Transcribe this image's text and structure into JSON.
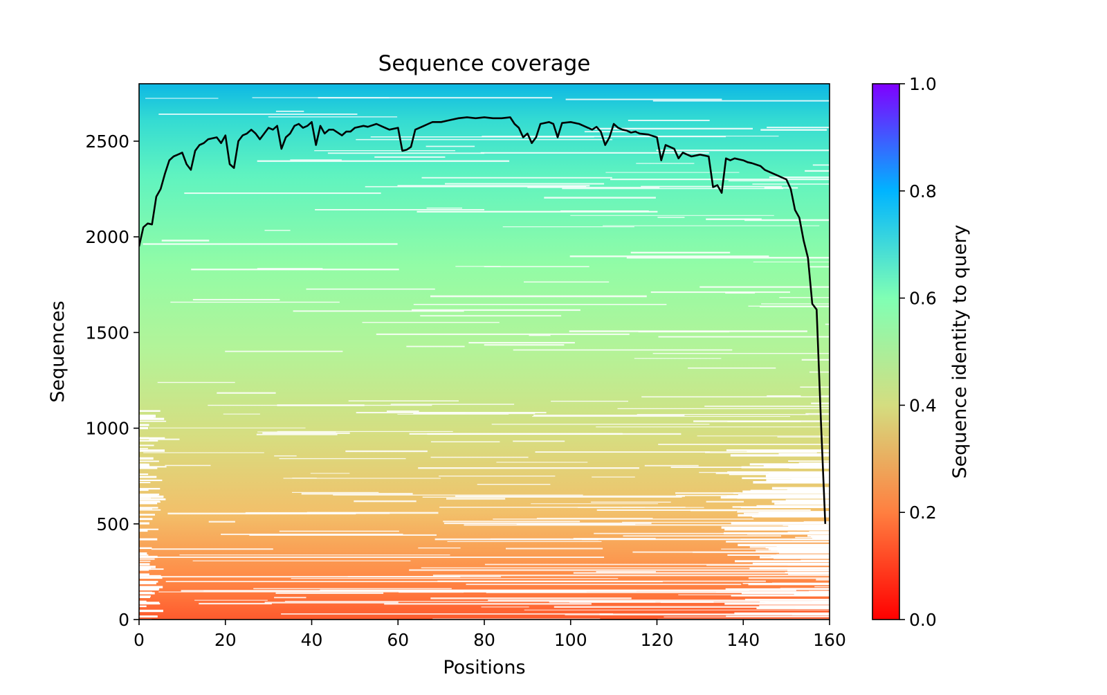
{
  "chart_data": {
    "type": "heatmap",
    "title": "Sequence coverage",
    "xlabel": "Positions",
    "ylabel": "Sequences",
    "xlim": [
      0,
      160
    ],
    "ylim": [
      0,
      2800
    ],
    "xticks": [
      0,
      20,
      40,
      60,
      80,
      100,
      120,
      140,
      160
    ],
    "yticks": [
      0,
      500,
      1000,
      1500,
      2000,
      2500
    ],
    "colorbar": {
      "label": "Sequence identity to query",
      "range": [
        0.0,
        1.0
      ],
      "ticks": [
        "0.0",
        "0.2",
        "0.4",
        "0.6",
        "0.8",
        "1.0"
      ],
      "colormap": "rainbow_r",
      "stops": [
        "#ff0000",
        "#ff7f40",
        "#d4dd80",
        "#80ffb4",
        "#00b4ff",
        "#8000ff"
      ]
    },
    "heatmap_identity_by_row": [
      {
        "sequence": 0,
        "identity": 0.12
      },
      {
        "sequence": 250,
        "identity": 0.2
      },
      {
        "sequence": 500,
        "identity": 0.28
      },
      {
        "sequence": 1000,
        "identity": 0.37
      },
      {
        "sequence": 1500,
        "identity": 0.44
      },
      {
        "sequence": 2000,
        "identity": 0.5
      },
      {
        "sequence": 2500,
        "identity": 0.58
      },
      {
        "sequence": 2800,
        "identity": 0.72
      }
    ],
    "series": [
      {
        "type": "line",
        "color": "#000000",
        "x": [
          0,
          1,
          2,
          3,
          4,
          5,
          6,
          7,
          8,
          9,
          10,
          11,
          12,
          13,
          14,
          15,
          16,
          18,
          19,
          20,
          21,
          22,
          23,
          24,
          25,
          26,
          27,
          28,
          29,
          30,
          31,
          32,
          33,
          34,
          35,
          36,
          37,
          38,
          39,
          40,
          41,
          42,
          43,
          44,
          45,
          47,
          48,
          49,
          50,
          52,
          53,
          55,
          56,
          58,
          60,
          61,
          62,
          63,
          64,
          66,
          67,
          68,
          70,
          72,
          74,
          76,
          78,
          80,
          82,
          84,
          86,
          87,
          88,
          89,
          90,
          91,
          92,
          93,
          95,
          96,
          97,
          98,
          100,
          102,
          103,
          105,
          106,
          107,
          108,
          109,
          110,
          111,
          112,
          113,
          114,
          115,
          116,
          118,
          120,
          121,
          122,
          123,
          124,
          125,
          126,
          127,
          128,
          129,
          130,
          132,
          133,
          134,
          135,
          136,
          137,
          138,
          140,
          141,
          142,
          144,
          145,
          146,
          147,
          148,
          149,
          150,
          151,
          152,
          153,
          154,
          155,
          156,
          157,
          158,
          159
        ],
        "y": [
          1950,
          2050,
          2070,
          2065,
          2210,
          2250,
          2330,
          2400,
          2420,
          2430,
          2440,
          2380,
          2350,
          2450,
          2480,
          2490,
          2510,
          2520,
          2490,
          2530,
          2380,
          2360,
          2500,
          2530,
          2540,
          2560,
          2540,
          2510,
          2540,
          2570,
          2560,
          2580,
          2460,
          2520,
          2540,
          2580,
          2590,
          2570,
          2580,
          2600,
          2480,
          2580,
          2540,
          2560,
          2560,
          2530,
          2550,
          2550,
          2570,
          2580,
          2575,
          2590,
          2580,
          2560,
          2570,
          2450,
          2455,
          2470,
          2560,
          2580,
          2590,
          2600,
          2600,
          2610,
          2620,
          2625,
          2620,
          2625,
          2620,
          2620,
          2625,
          2590,
          2570,
          2520,
          2540,
          2490,
          2520,
          2590,
          2600,
          2590,
          2520,
          2595,
          2600,
          2590,
          2580,
          2560,
          2575,
          2550,
          2480,
          2520,
          2590,
          2570,
          2560,
          2555,
          2545,
          2550,
          2540,
          2535,
          2520,
          2400,
          2480,
          2470,
          2460,
          2410,
          2440,
          2430,
          2420,
          2425,
          2430,
          2420,
          2260,
          2270,
          2230,
          2410,
          2400,
          2410,
          2400,
          2390,
          2385,
          2370,
          2350,
          2340,
          2330,
          2320,
          2310,
          2300,
          2250,
          2140,
          2100,
          1980,
          1890,
          1650,
          1620,
          1040,
          500
        ]
      }
    ]
  }
}
